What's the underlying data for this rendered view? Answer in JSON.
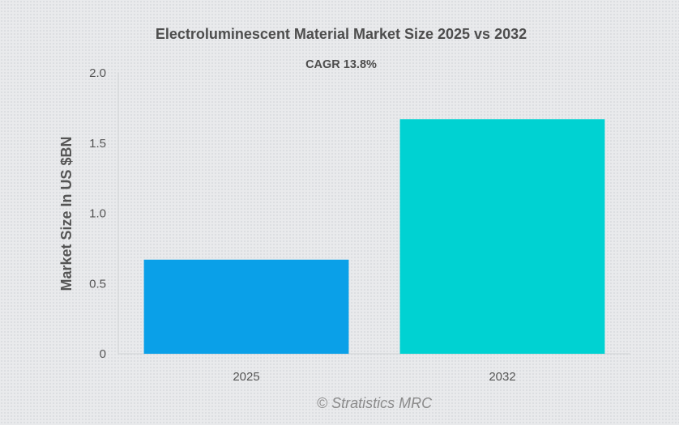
{
  "chart_data": {
    "type": "bar",
    "title": "Electroluminescent Material Market Size 2025 vs 2032",
    "subtitle": "CAGR 13.8%",
    "xlabel": "",
    "ylabel": "Market Size In US $BN",
    "categories": [
      "2025",
      "2032"
    ],
    "values": [
      0.67,
      1.67
    ],
    "bar_colors": [
      "#0aa0e8",
      "#00d2d2"
    ],
    "ylim": [
      0,
      2.0
    ],
    "yticks": [
      "0",
      "0.5",
      "1.0",
      "1.5",
      "2.0"
    ],
    "ytick_values": [
      0,
      0.5,
      1.0,
      1.5,
      2.0
    ],
    "grid": false,
    "legend": "none"
  },
  "watermark": "© Stratistics MRC"
}
